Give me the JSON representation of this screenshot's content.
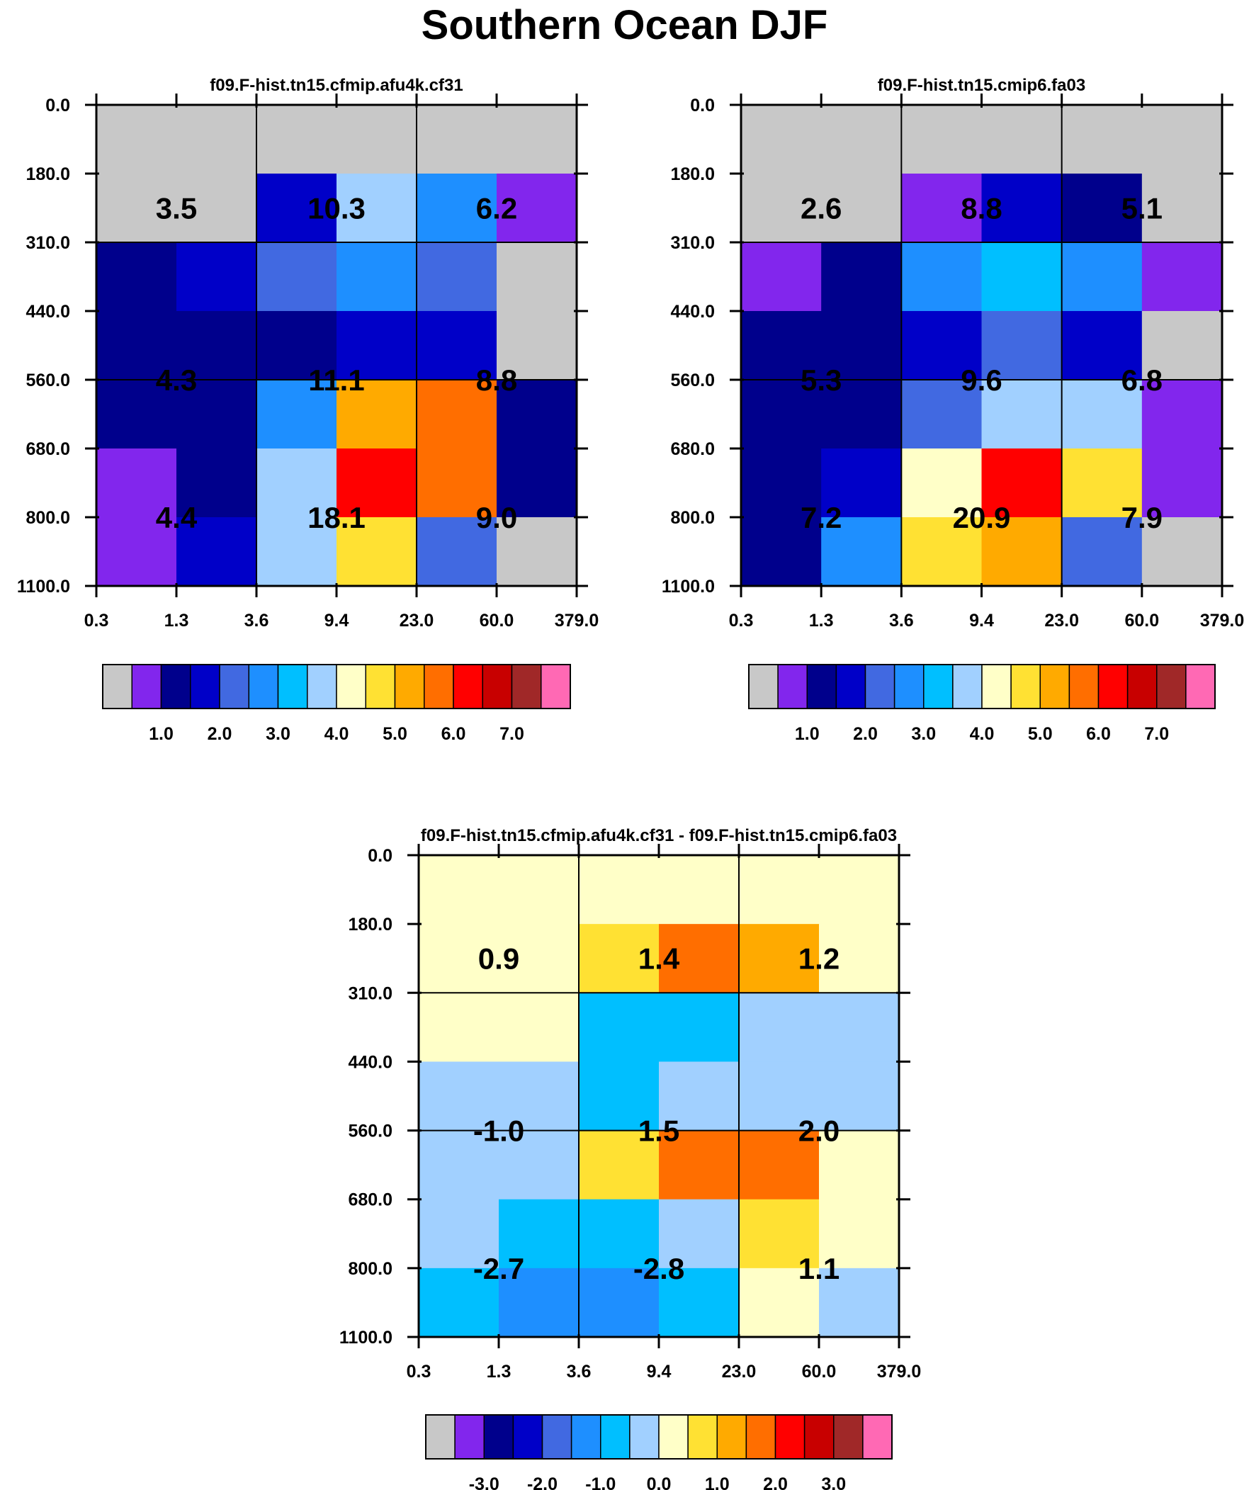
{
  "figure": {
    "title": "Southern Ocean DJF"
  },
  "palette": [
    "#c8c8c8",
    "#8226ed",
    "#00008c",
    "#0000c8",
    "#4169e1",
    "#1e8fff",
    "#00bfff",
    "#a1d0ff",
    "#ffffc8",
    "#ffe133",
    "#ffaa00",
    "#ff6e00",
    "#ff0000",
    "#c80000",
    "#a02828",
    "#ff69b4"
  ],
  "chart_data": [
    {
      "type": "heatmap",
      "title": "f09.F-hist.tn15.cfmip.afu4k.cf31",
      "x_ticks": [
        "0.3",
        "1.3",
        "3.6",
        "9.4",
        "23.0",
        "60.0",
        "379.0"
      ],
      "y_ticks": [
        "0.0",
        "180.0",
        "310.0",
        "440.0",
        "560.0",
        "680.0",
        "800.0",
        "1100.0"
      ],
      "cells": [
        [
          0,
          0,
          0,
          0,
          0,
          0
        ],
        [
          0,
          0,
          3,
          7,
          5,
          1
        ],
        [
          2,
          3,
          4,
          5,
          4,
          0
        ],
        [
          2,
          2,
          2,
          3,
          3,
          0
        ],
        [
          2,
          2,
          5,
          10,
          11,
          2
        ],
        [
          1,
          2,
          7,
          12,
          11,
          2
        ],
        [
          1,
          3,
          7,
          9,
          4,
          0
        ]
      ],
      "box_values": [
        [
          "3.5",
          "10.3",
          "6.2"
        ],
        [
          "4.3",
          "11.1",
          "8.8"
        ],
        [
          "4.4",
          "18.1",
          "9.0"
        ]
      ],
      "legend": {
        "labels": [
          "1.0",
          "2.0",
          "3.0",
          "4.0",
          "5.0",
          "6.0",
          "7.0"
        ]
      }
    },
    {
      "type": "heatmap",
      "title": "f09.F-hist.tn15.cmip6.fa03",
      "x_ticks": [
        "0.3",
        "1.3",
        "3.6",
        "9.4",
        "23.0",
        "60.0",
        "379.0"
      ],
      "y_ticks": [
        "0.0",
        "180.0",
        "310.0",
        "440.0",
        "560.0",
        "680.0",
        "800.0",
        "1100.0"
      ],
      "cells": [
        [
          0,
          0,
          0,
          0,
          0,
          0
        ],
        [
          0,
          0,
          1,
          3,
          2,
          0
        ],
        [
          1,
          2,
          5,
          6,
          5,
          1
        ],
        [
          2,
          2,
          3,
          4,
          3,
          0
        ],
        [
          2,
          2,
          4,
          7,
          7,
          1
        ],
        [
          2,
          3,
          8,
          12,
          9,
          1
        ],
        [
          2,
          5,
          9,
          10,
          4,
          0
        ]
      ],
      "box_values": [
        [
          "2.6",
          "8.8",
          "5.1"
        ],
        [
          "5.3",
          "9.6",
          "6.8"
        ],
        [
          "7.2",
          "20.9",
          "7.9"
        ]
      ],
      "legend": {
        "labels": [
          "1.0",
          "2.0",
          "3.0",
          "4.0",
          "5.0",
          "6.0",
          "7.0"
        ]
      }
    },
    {
      "type": "heatmap",
      "title": "f09.F-hist.tn15.cfmip.afu4k.cf31 - f09.F-hist.tn15.cmip6.fa03",
      "x_ticks": [
        "0.3",
        "1.3",
        "3.6",
        "9.4",
        "23.0",
        "60.0",
        "379.0"
      ],
      "y_ticks": [
        "0.0",
        "180.0",
        "310.0",
        "440.0",
        "560.0",
        "680.0",
        "800.0",
        "1100.0"
      ],
      "cells": [
        [
          8,
          8,
          8,
          8,
          8,
          8
        ],
        [
          8,
          8,
          9,
          11,
          10,
          8
        ],
        [
          8,
          8,
          6,
          6,
          7,
          7
        ],
        [
          7,
          7,
          6,
          7,
          7,
          7
        ],
        [
          7,
          7,
          9,
          11,
          11,
          8
        ],
        [
          7,
          6,
          6,
          7,
          9,
          8
        ],
        [
          6,
          5,
          5,
          6,
          8,
          7
        ]
      ],
      "box_values": [
        [
          "0.9",
          "1.4",
          "1.2"
        ],
        [
          "-1.0",
          "1.5",
          "2.0"
        ],
        [
          "-2.7",
          "-2.8",
          "1.1"
        ]
      ],
      "legend": {
        "labels": [
          "-3.0",
          "-2.0",
          "-1.0",
          "0.0",
          "1.0",
          "2.0",
          "3.0"
        ]
      }
    }
  ]
}
